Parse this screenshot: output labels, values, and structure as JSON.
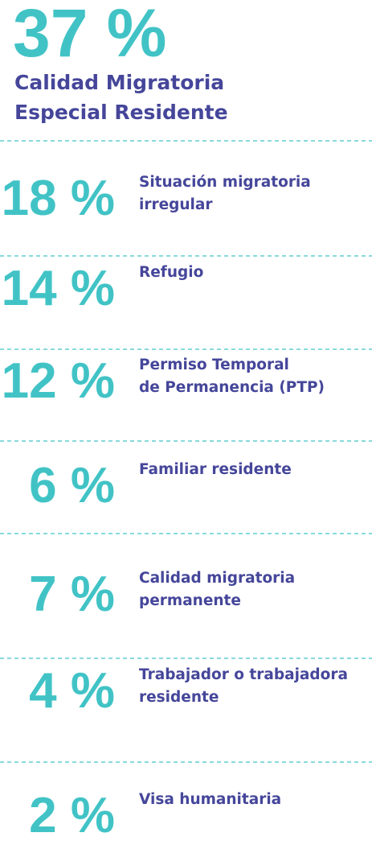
{
  "header": {
    "percent": "37 %",
    "label": [
      "Calidad Migratoria",
      "Especial Residente"
    ]
  },
  "items": [
    {
      "percent": "18 %",
      "label": [
        "Situación migratoria",
        "irregular"
      ]
    },
    {
      "percent": "14 %",
      "label": [
        "Refugio"
      ]
    },
    {
      "percent": "12 %",
      "label": [
        "Permiso Temporal",
        "de Permanencia (PTP)"
      ]
    },
    {
      "percent": "6 %",
      "label": [
        "Familiar residente"
      ]
    },
    {
      "percent": "7 %",
      "label": [
        "Calidad migratoria",
        "permanente"
      ]
    },
    {
      "percent": "4 %",
      "label": [
        "Trabajador o trabajadora",
        "residente"
      ]
    },
    {
      "percent": "2 %",
      "label": [
        "Visa humanitaria"
      ]
    }
  ]
}
